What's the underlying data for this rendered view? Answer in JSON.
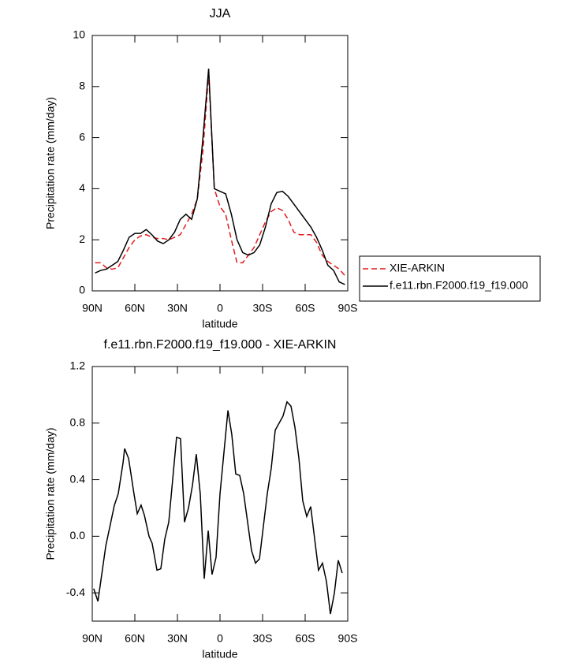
{
  "chart_data": [
    {
      "type": "line",
      "title": "JJA",
      "xlabel": "latitude",
      "ylabel": "Precipitation rate (mm/day)",
      "x": [
        88,
        84,
        80,
        76,
        72,
        68,
        64,
        60,
        56,
        52,
        48,
        44,
        40,
        36,
        32,
        28,
        24,
        20,
        16,
        12,
        8,
        4,
        0,
        -4,
        -8,
        -12,
        -16,
        -20,
        -24,
        -28,
        -32,
        -36,
        -40,
        -44,
        -48,
        -52,
        -56,
        -60,
        -64,
        -68,
        -72,
        -76,
        -80,
        -84,
        -88
      ],
      "series": [
        {
          "name": "XIE-ARKIN",
          "color": "#e31a1c",
          "line_style": "dashed",
          "values": [
            1.1,
            1.1,
            0.9,
            0.85,
            0.9,
            1.3,
            1.7,
            2.0,
            2.15,
            2.2,
            2.1,
            2.05,
            2.05,
            2.0,
            2.1,
            2.2,
            2.6,
            3.0,
            3.6,
            5.5,
            8.5,
            4.0,
            3.3,
            3.0,
            2.0,
            1.1,
            1.1,
            1.4,
            1.7,
            2.2,
            2.7,
            3.1,
            3.25,
            3.15,
            2.8,
            2.3,
            2.2,
            2.2,
            2.2,
            1.9,
            1.4,
            1.15,
            1.0,
            0.85,
            0.6
          ]
        },
        {
          "name": "f.e11.rbn.F2000.f19_f19.000",
          "color": "#000000",
          "line_style": "solid",
          "values": [
            0.7,
            0.8,
            0.85,
            1.0,
            1.15,
            1.6,
            2.1,
            2.25,
            2.25,
            2.4,
            2.2,
            1.95,
            1.85,
            2.0,
            2.3,
            2.8,
            3.0,
            2.8,
            3.6,
            6.0,
            8.7,
            4.0,
            3.9,
            3.8,
            3.0,
            2.0,
            1.5,
            1.4,
            1.5,
            1.8,
            2.5,
            3.4,
            3.85,
            3.9,
            3.7,
            3.4,
            3.1,
            2.8,
            2.5,
            2.1,
            1.6,
            1.0,
            0.8,
            0.35,
            0.25
          ]
        }
      ],
      "xlim": [
        90,
        -90
      ],
      "xticks": [
        {
          "value": 90,
          "label": "90N"
        },
        {
          "value": 60,
          "label": "60N"
        },
        {
          "value": 30,
          "label": "30N"
        },
        0,
        {
          "value": -30,
          "label": "30S"
        },
        {
          "value": -60,
          "label": "60S"
        },
        {
          "value": -90,
          "label": "90S"
        }
      ],
      "ylim": [
        0,
        10
      ],
      "yticks": [
        0,
        2,
        4,
        6,
        8,
        10
      ],
      "grid": false,
      "legend": "right"
    },
    {
      "type": "line",
      "title": "f.e11.rbn.F2000.f19_f19.000 - XIE-ARKIN",
      "xlabel": "latitude",
      "ylabel": "Precipitation rate (mm/day)",
      "x": [
        89,
        86,
        80.5,
        74.4,
        71.7,
        68.3,
        67.2,
        64.4,
        60.6,
        58.3,
        55.6,
        53.3,
        50,
        47.8,
        44.4,
        41.7,
        38.9,
        36.1,
        30.6,
        27.8,
        25,
        22.2,
        19.4,
        16.7,
        13.9,
        11.1,
        8.3,
        5.6,
        2.8,
        0,
        -5.6,
        -8.3,
        -11.1,
        -13.9,
        -16.7,
        -22.2,
        -25,
        -27.8,
        -33.3,
        -36.1,
        -38.9,
        -44.4,
        -47.2,
        -50,
        -52.8,
        -55.6,
        -58.3,
        -61.1,
        -63.9,
        -66.7,
        -69.4,
        -72.2,
        -75,
        -77.8,
        -80.6,
        -83.3,
        -86.1
      ],
      "series": [
        {
          "color": "#000000",
          "line_style": "solid",
          "values": [
            -0.37,
            -0.46,
            -0.07,
            0.22,
            0.3,
            0.52,
            0.62,
            0.55,
            0.3,
            0.16,
            0.22,
            0.15,
            0.0,
            -0.05,
            -0.24,
            -0.23,
            -0.02,
            0.1,
            0.7,
            0.69,
            0.1,
            0.2,
            0.36,
            0.58,
            0.3,
            -0.3,
            0.04,
            -0.27,
            -0.15,
            0.3,
            0.89,
            0.72,
            0.44,
            0.43,
            0.3,
            -0.1,
            -0.19,
            -0.16,
            0.3,
            0.48,
            0.75,
            0.85,
            0.95,
            0.92,
            0.77,
            0.55,
            0.25,
            0.14,
            0.21,
            -0.02,
            -0.24,
            -0.19,
            -0.32,
            -0.55,
            -0.4,
            -0.17,
            -0.26
          ]
        }
      ],
      "xlim": [
        90,
        -90
      ],
      "xticks": [
        {
          "value": 90,
          "label": "90N"
        },
        {
          "value": 60,
          "label": "60N"
        },
        {
          "value": 30,
          "label": "30N"
        },
        0,
        {
          "value": -30,
          "label": "30S"
        },
        {
          "value": -60,
          "label": "60S"
        },
        {
          "value": -90,
          "label": "90S"
        }
      ],
      "ylim": [
        -0.6,
        1.2
      ],
      "yticks": [
        -0.4,
        {
          "value": 0,
          "label": "0.0"
        },
        0.4,
        0.8,
        1.2
      ],
      "grid": false
    }
  ]
}
